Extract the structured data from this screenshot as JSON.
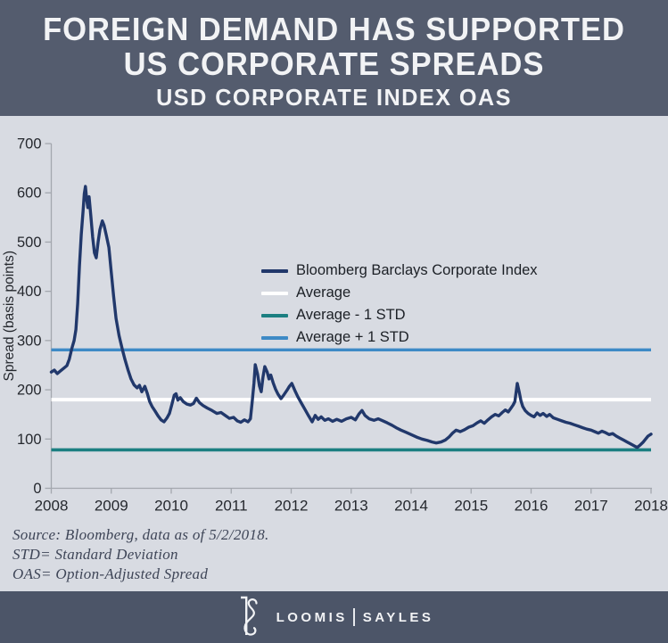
{
  "header": {
    "title_line1": "FOREIGN DEMAND HAS SUPPORTED",
    "title_line2": "US CORPORATE SPREADS",
    "subtitle": "USD CORPORATE INDEX OAS"
  },
  "colors": {
    "header_bg": "#545C6E",
    "footer_bg": "#4C5568",
    "chart_bg": "#D8DBE2",
    "axis": "#A3A7AE",
    "tick_text": "#25282E",
    "series_navy": "#21386B",
    "average_white": "#FFFFFF",
    "minus_std_teal": "#1C7F81",
    "plus_std_blue": "#3E8AC6"
  },
  "chart_data": {
    "type": "line",
    "title": "USD Corporate Index OAS",
    "xlabel": "",
    "ylabel": "Spread (basis points)",
    "xlim": [
      2008,
      2018
    ],
    "ylim": [
      0,
      700
    ],
    "xticks": [
      2008,
      2009,
      2010,
      2011,
      2012,
      2013,
      2014,
      2015,
      2016,
      2017,
      2018
    ],
    "yticks": [
      0,
      100,
      200,
      300,
      400,
      500,
      600,
      700
    ],
    "grid": false,
    "legend_position": "top-center-inside",
    "series": [
      {
        "name": "Bloomberg Barclays Corporate Index",
        "type": "line",
        "color": "#21386B",
        "points": [
          [
            2008.0,
            236
          ],
          [
            2008.05,
            240
          ],
          [
            2008.1,
            233
          ],
          [
            2008.15,
            238
          ],
          [
            2008.21,
            244
          ],
          [
            2008.26,
            249
          ],
          [
            2008.3,
            262
          ],
          [
            2008.34,
            283
          ],
          [
            2008.38,
            300
          ],
          [
            2008.41,
            322
          ],
          [
            2008.44,
            375
          ],
          [
            2008.47,
            452
          ],
          [
            2008.5,
            515
          ],
          [
            2008.53,
            562
          ],
          [
            2008.55,
            598
          ],
          [
            2008.57,
            613
          ],
          [
            2008.59,
            586
          ],
          [
            2008.61,
            570
          ],
          [
            2008.63,
            592
          ],
          [
            2008.66,
            552
          ],
          [
            2008.69,
            510
          ],
          [
            2008.72,
            478
          ],
          [
            2008.75,
            468
          ],
          [
            2008.78,
            500
          ],
          [
            2008.81,
            525
          ],
          [
            2008.85,
            543
          ],
          [
            2008.88,
            534
          ],
          [
            2008.92,
            512
          ],
          [
            2008.96,
            489
          ],
          [
            2009.0,
            438
          ],
          [
            2009.04,
            390
          ],
          [
            2009.08,
            345
          ],
          [
            2009.13,
            310
          ],
          [
            2009.18,
            284
          ],
          [
            2009.23,
            261
          ],
          [
            2009.28,
            240
          ],
          [
            2009.33,
            222
          ],
          [
            2009.38,
            210
          ],
          [
            2009.43,
            204
          ],
          [
            2009.47,
            209
          ],
          [
            2009.51,
            196
          ],
          [
            2009.56,
            207
          ],
          [
            2009.6,
            193
          ],
          [
            2009.64,
            176
          ],
          [
            2009.68,
            166
          ],
          [
            2009.73,
            157
          ],
          [
            2009.78,
            147
          ],
          [
            2009.83,
            139
          ],
          [
            2009.88,
            135
          ],
          [
            2009.93,
            143
          ],
          [
            2009.97,
            152
          ],
          [
            2010.01,
            170
          ],
          [
            2010.05,
            189
          ],
          [
            2010.08,
            192
          ],
          [
            2010.11,
            179
          ],
          [
            2010.15,
            184
          ],
          [
            2010.2,
            176
          ],
          [
            2010.26,
            171
          ],
          [
            2010.32,
            169
          ],
          [
            2010.37,
            172
          ],
          [
            2010.42,
            183
          ],
          [
            2010.47,
            174
          ],
          [
            2010.53,
            168
          ],
          [
            2010.6,
            163
          ],
          [
            2010.68,
            158
          ],
          [
            2010.76,
            152
          ],
          [
            2010.83,
            154
          ],
          [
            2010.9,
            148
          ],
          [
            2010.97,
            142
          ],
          [
            2011.04,
            144
          ],
          [
            2011.1,
            137
          ],
          [
            2011.16,
            134
          ],
          [
            2011.22,
            139
          ],
          [
            2011.28,
            135
          ],
          [
            2011.32,
            141
          ],
          [
            2011.35,
            176
          ],
          [
            2011.38,
            214
          ],
          [
            2011.4,
            251
          ],
          [
            2011.44,
            232
          ],
          [
            2011.47,
            208
          ],
          [
            2011.5,
            196
          ],
          [
            2011.53,
            226
          ],
          [
            2011.56,
            247
          ],
          [
            2011.6,
            236
          ],
          [
            2011.63,
            222
          ],
          [
            2011.66,
            230
          ],
          [
            2011.7,
            214
          ],
          [
            2011.74,
            201
          ],
          [
            2011.78,
            191
          ],
          [
            2011.83,
            182
          ],
          [
            2011.88,
            190
          ],
          [
            2011.93,
            199
          ],
          [
            2011.97,
            207
          ],
          [
            2012.01,
            213
          ],
          [
            2012.06,
            199
          ],
          [
            2012.11,
            186
          ],
          [
            2012.17,
            173
          ],
          [
            2012.23,
            160
          ],
          [
            2012.29,
            147
          ],
          [
            2012.35,
            135
          ],
          [
            2012.4,
            148
          ],
          [
            2012.45,
            140
          ],
          [
            2012.5,
            145
          ],
          [
            2012.56,
            138
          ],
          [
            2012.62,
            141
          ],
          [
            2012.69,
            136
          ],
          [
            2012.76,
            140
          ],
          [
            2012.84,
            136
          ],
          [
            2012.92,
            141
          ],
          [
            2013.0,
            144
          ],
          [
            2013.07,
            139
          ],
          [
            2013.13,
            151
          ],
          [
            2013.18,
            158
          ],
          [
            2013.23,
            148
          ],
          [
            2013.3,
            141
          ],
          [
            2013.38,
            138
          ],
          [
            2013.45,
            141
          ],
          [
            2013.53,
            137
          ],
          [
            2013.6,
            133
          ],
          [
            2013.68,
            128
          ],
          [
            2013.75,
            123
          ],
          [
            2013.83,
            118
          ],
          [
            2013.91,
            114
          ],
          [
            2014.0,
            109
          ],
          [
            2014.09,
            104
          ],
          [
            2014.18,
            100
          ],
          [
            2014.27,
            97
          ],
          [
            2014.35,
            94
          ],
          [
            2014.42,
            92
          ],
          [
            2014.5,
            94
          ],
          [
            2014.57,
            98
          ],
          [
            2014.63,
            104
          ],
          [
            2014.69,
            112
          ],
          [
            2014.75,
            118
          ],
          [
            2014.82,
            115
          ],
          [
            2014.89,
            119
          ],
          [
            2014.96,
            124
          ],
          [
            2015.03,
            127
          ],
          [
            2015.1,
            133
          ],
          [
            2015.16,
            137
          ],
          [
            2015.22,
            132
          ],
          [
            2015.28,
            139
          ],
          [
            2015.34,
            145
          ],
          [
            2015.4,
            150
          ],
          [
            2015.46,
            147
          ],
          [
            2015.52,
            154
          ],
          [
            2015.57,
            159
          ],
          [
            2015.62,
            155
          ],
          [
            2015.66,
            162
          ],
          [
            2015.7,
            169
          ],
          [
            2015.73,
            176
          ],
          [
            2015.77,
            213
          ],
          [
            2015.8,
            197
          ],
          [
            2015.83,
            178
          ],
          [
            2015.86,
            166
          ],
          [
            2015.9,
            158
          ],
          [
            2015.95,
            152
          ],
          [
            2016.0,
            148
          ],
          [
            2016.05,
            145
          ],
          [
            2016.1,
            153
          ],
          [
            2016.15,
            148
          ],
          [
            2016.2,
            152
          ],
          [
            2016.26,
            146
          ],
          [
            2016.31,
            150
          ],
          [
            2016.37,
            143
          ],
          [
            2016.44,
            140
          ],
          [
            2016.51,
            137
          ],
          [
            2016.58,
            134
          ],
          [
            2016.65,
            132
          ],
          [
            2016.72,
            129
          ],
          [
            2016.79,
            126
          ],
          [
            2016.86,
            123
          ],
          [
            2016.93,
            120
          ],
          [
            2017.0,
            118
          ],
          [
            2017.06,
            115
          ],
          [
            2017.12,
            112
          ],
          [
            2017.18,
            116
          ],
          [
            2017.24,
            113
          ],
          [
            2017.3,
            109
          ],
          [
            2017.36,
            111
          ],
          [
            2017.42,
            106
          ],
          [
            2017.48,
            102
          ],
          [
            2017.54,
            98
          ],
          [
            2017.6,
            94
          ],
          [
            2017.66,
            90
          ],
          [
            2017.72,
            86
          ],
          [
            2017.77,
            83
          ],
          [
            2017.82,
            88
          ],
          [
            2017.87,
            94
          ],
          [
            2017.91,
            100
          ],
          [
            2017.95,
            106
          ],
          [
            2018.0,
            110
          ]
        ]
      },
      {
        "name": "Average",
        "type": "hline",
        "color": "#FFFFFF",
        "value": 180,
        "width": 4.0
      },
      {
        "name": "Average - 1 STD",
        "type": "hline",
        "color": "#1C7F81",
        "value": 78,
        "width": 3.6
      },
      {
        "name": "Average + 1 STD",
        "type": "hline",
        "color": "#3E8AC6",
        "value": 281,
        "width": 3.4
      }
    ]
  },
  "notes": {
    "source": "Source: Bloomberg, data as of 5/2/2018.",
    "std": "STD= Standard Deviation",
    "oas": "OAS= Option-Adjusted Spread"
  },
  "footer": {
    "monogram_icon": "ls-monogram",
    "brand_left": "LOOMIS",
    "brand_right": "SAYLES"
  }
}
